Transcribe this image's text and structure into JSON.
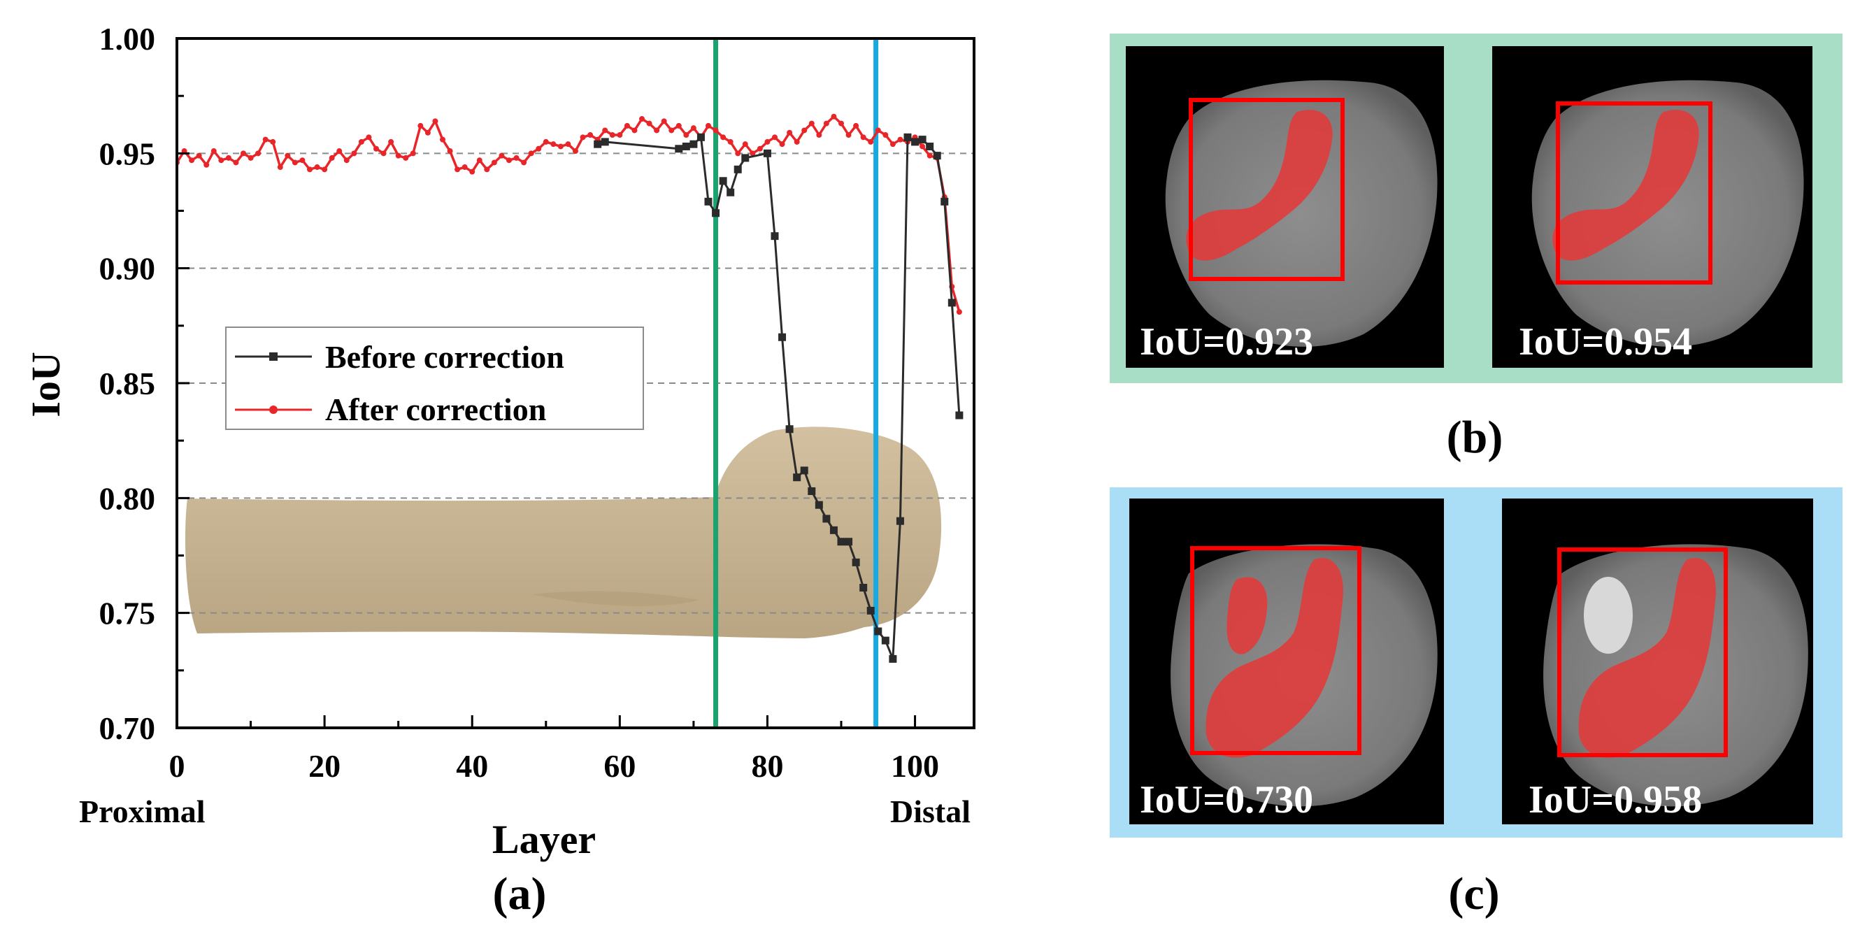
{
  "chart_data": {
    "type": "line",
    "xlabel": "Layer",
    "ylabel": "IoU",
    "xlim": [
      0,
      108
    ],
    "ylim": [
      0.7,
      1.0
    ],
    "x_ticks": [
      0,
      20,
      40,
      60,
      80,
      100
    ],
    "y_ticks": [
      "0.70",
      "0.75",
      "0.80",
      "0.85",
      "0.90",
      "0.95",
      "1.00"
    ],
    "y_gridlines": [
      0.75,
      0.8,
      0.85,
      0.9,
      0.95
    ],
    "x_end_labels": {
      "left": "Proximal",
      "right": "Distal"
    },
    "vertical_markers": [
      {
        "x": 73,
        "color": "#1aa36f"
      },
      {
        "x": 94.7,
        "color": "#17a9e0"
      }
    ],
    "legend": [
      "Before correction",
      "After correction"
    ],
    "series": [
      {
        "name": "After correction",
        "color": "#e8262a",
        "x": [
          0,
          1,
          2,
          3,
          4,
          5,
          6,
          7,
          8,
          9,
          10,
          11,
          12,
          13,
          14,
          15,
          16,
          17,
          18,
          19,
          20,
          21,
          22,
          23,
          24,
          25,
          26,
          27,
          28,
          29,
          30,
          31,
          32,
          33,
          34,
          35,
          36,
          37,
          38,
          39,
          40,
          41,
          42,
          43,
          44,
          45,
          46,
          47,
          48,
          49,
          50,
          51,
          52,
          53,
          54,
          55,
          56,
          57,
          58,
          59,
          60,
          61,
          62,
          63,
          64,
          65,
          66,
          67,
          68,
          69,
          70,
          71,
          72,
          73,
          74,
          75,
          76,
          77,
          78,
          79,
          80,
          81,
          82,
          83,
          84,
          85,
          86,
          87,
          88,
          89,
          90,
          91,
          92,
          93,
          94,
          95,
          96,
          97,
          98,
          99,
          100,
          101,
          102,
          103,
          104,
          105,
          106
        ],
        "values": [
          0.946,
          0.951,
          0.947,
          0.949,
          0.945,
          0.951,
          0.947,
          0.948,
          0.946,
          0.95,
          0.948,
          0.95,
          0.956,
          0.955,
          0.944,
          0.949,
          0.946,
          0.947,
          0.943,
          0.944,
          0.943,
          0.948,
          0.951,
          0.947,
          0.95,
          0.955,
          0.957,
          0.952,
          0.95,
          0.955,
          0.949,
          0.948,
          0.95,
          0.962,
          0.959,
          0.964,
          0.956,
          0.951,
          0.943,
          0.944,
          0.942,
          0.947,
          0.943,
          0.946,
          0.949,
          0.947,
          0.948,
          0.946,
          0.95,
          0.952,
          0.955,
          0.954,
          0.953,
          0.954,
          0.951,
          0.957,
          0.958,
          0.956,
          0.96,
          0.958,
          0.958,
          0.962,
          0.96,
          0.965,
          0.963,
          0.96,
          0.964,
          0.96,
          0.962,
          0.958,
          0.961,
          0.957,
          0.962,
          0.96,
          0.957,
          0.955,
          0.95,
          0.954,
          0.95,
          0.952,
          0.955,
          0.957,
          0.954,
          0.959,
          0.955,
          0.96,
          0.963,
          0.958,
          0.963,
          0.966,
          0.963,
          0.958,
          0.962,
          0.957,
          0.955,
          0.96,
          0.958,
          0.954,
          0.956,
          0.955,
          0.957,
          0.953,
          0.949,
          0.948,
          0.931,
          0.892,
          0.881
        ]
      },
      {
        "name": "Before correction",
        "color": "#2b2b2b",
        "x": [
          57,
          58,
          68,
          69,
          70,
          71,
          72,
          73,
          74,
          75,
          76,
          77,
          80,
          81,
          82,
          83,
          84,
          85,
          86,
          87,
          88,
          89,
          90,
          91,
          92,
          93,
          94,
          95,
          96,
          97,
          98,
          99,
          100,
          101,
          102,
          103,
          104,
          105,
          106
        ],
        "values": [
          0.954,
          0.955,
          0.952,
          0.953,
          0.954,
          0.957,
          0.929,
          0.924,
          0.938,
          0.933,
          0.943,
          0.948,
          0.95,
          0.914,
          0.87,
          0.83,
          0.809,
          0.812,
          0.803,
          0.797,
          0.791,
          0.786,
          0.781,
          0.781,
          0.772,
          0.761,
          0.751,
          0.742,
          0.738,
          0.73,
          0.79,
          0.957,
          0.955,
          0.956,
          0.953,
          0.949,
          0.929,
          0.885,
          0.836
        ]
      }
    ]
  },
  "panels": {
    "a_caption": "(a)",
    "b_caption": "(b)",
    "c_caption": "(c)",
    "b_left_iou": "IoU=0.923",
    "b_right_iou": "IoU=0.954",
    "c_left_iou": "IoU=0.730",
    "c_right_iou": "IoU=0.958",
    "b_frame_color": "#a8ddc6",
    "c_frame_color": "#a9def6"
  }
}
